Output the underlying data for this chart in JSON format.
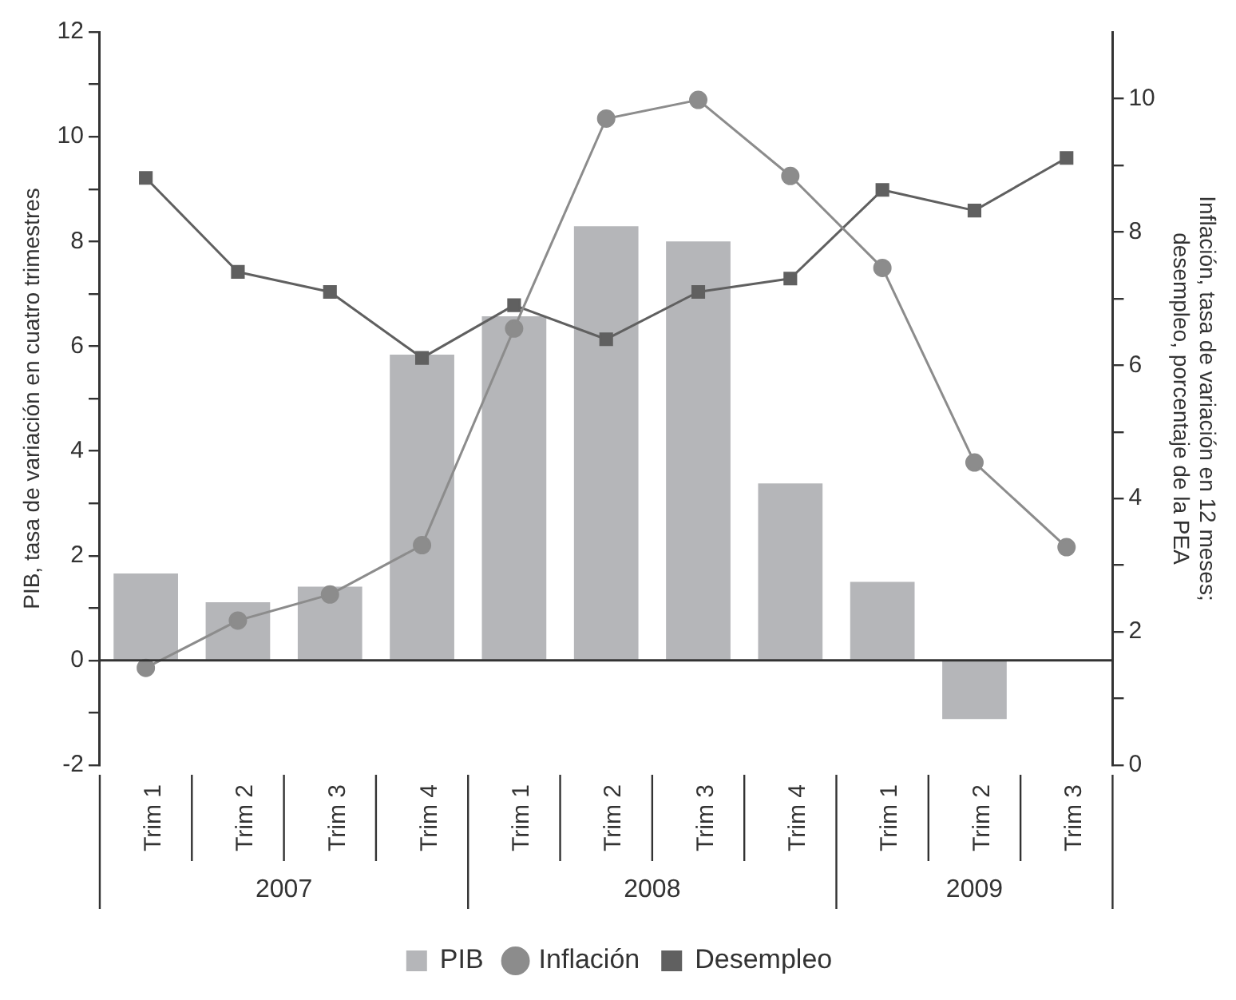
{
  "chart_data": {
    "type": "bar",
    "categories": [
      "Trim 1",
      "Trim 2",
      "Trim 3",
      "Trim 4",
      "Trim 1",
      "Trim 2",
      "Trim 3",
      "Trim 4",
      "Trim 1",
      "Trim 2",
      "Trim 3"
    ],
    "annotations": [
      "2007",
      "2008",
      "2009"
    ],
    "ylabel": "PIB, tasa de variación en cuatro trimestres",
    "y2label": "Inflación, tasa de variación en 12 meses; desempleo, porcentaje de la PEA",
    "series": [
      {
        "name": "PIB",
        "color": "#b5b6b9",
        "values": [
          1.66,
          1.11,
          1.41,
          5.84,
          6.57,
          8.29,
          8.0,
          3.38,
          1.5,
          -1.12,
          null
        ]
      },
      {
        "name": "Inflación",
        "type": "line",
        "axis": "y2",
        "marker": "circle",
        "color": "#8c8c8c",
        "values": [
          1.46,
          2.17,
          2.56,
          3.3,
          6.55,
          9.7,
          9.98,
          8.84,
          7.46,
          4.54,
          3.27
        ]
      },
      {
        "name": "Desempleo",
        "type": "line",
        "axis": "y2",
        "marker": "square",
        "color": "#606060",
        "values": [
          8.81,
          7.4,
          7.1,
          6.11,
          6.9,
          6.39,
          7.1,
          7.3,
          8.63,
          8.32,
          9.11
        ]
      }
    ],
    "ylim": [
      -2,
      12
    ],
    "yticks": [
      -2,
      {
        "value": -1,
        "label": null
      },
      0,
      {
        "value": 1,
        "label": null
      },
      2,
      {
        "value": 3,
        "label": null
      },
      4,
      {
        "value": 5,
        "label": null
      },
      6,
      {
        "value": 7,
        "label": null
      },
      8,
      {
        "value": 9,
        "label": null
      },
      10,
      {
        "value": 11,
        "label": null
      },
      12
    ],
    "y2lim": [
      0,
      11
    ],
    "y2ticks": [
      0,
      {
        "value": 1,
        "label": null
      },
      2,
      {
        "value": 3,
        "label": null
      },
      4,
      {
        "value": 5,
        "label": null
      },
      6,
      {
        "value": 7,
        "label": null
      },
      8,
      {
        "value": 9,
        "label": null
      },
      10
    ],
    "ref_lines": [
      {
        "axis": "y",
        "value": 0,
        "color": "#333333"
      }
    ],
    "grid": false,
    "legend": "bottom"
  }
}
